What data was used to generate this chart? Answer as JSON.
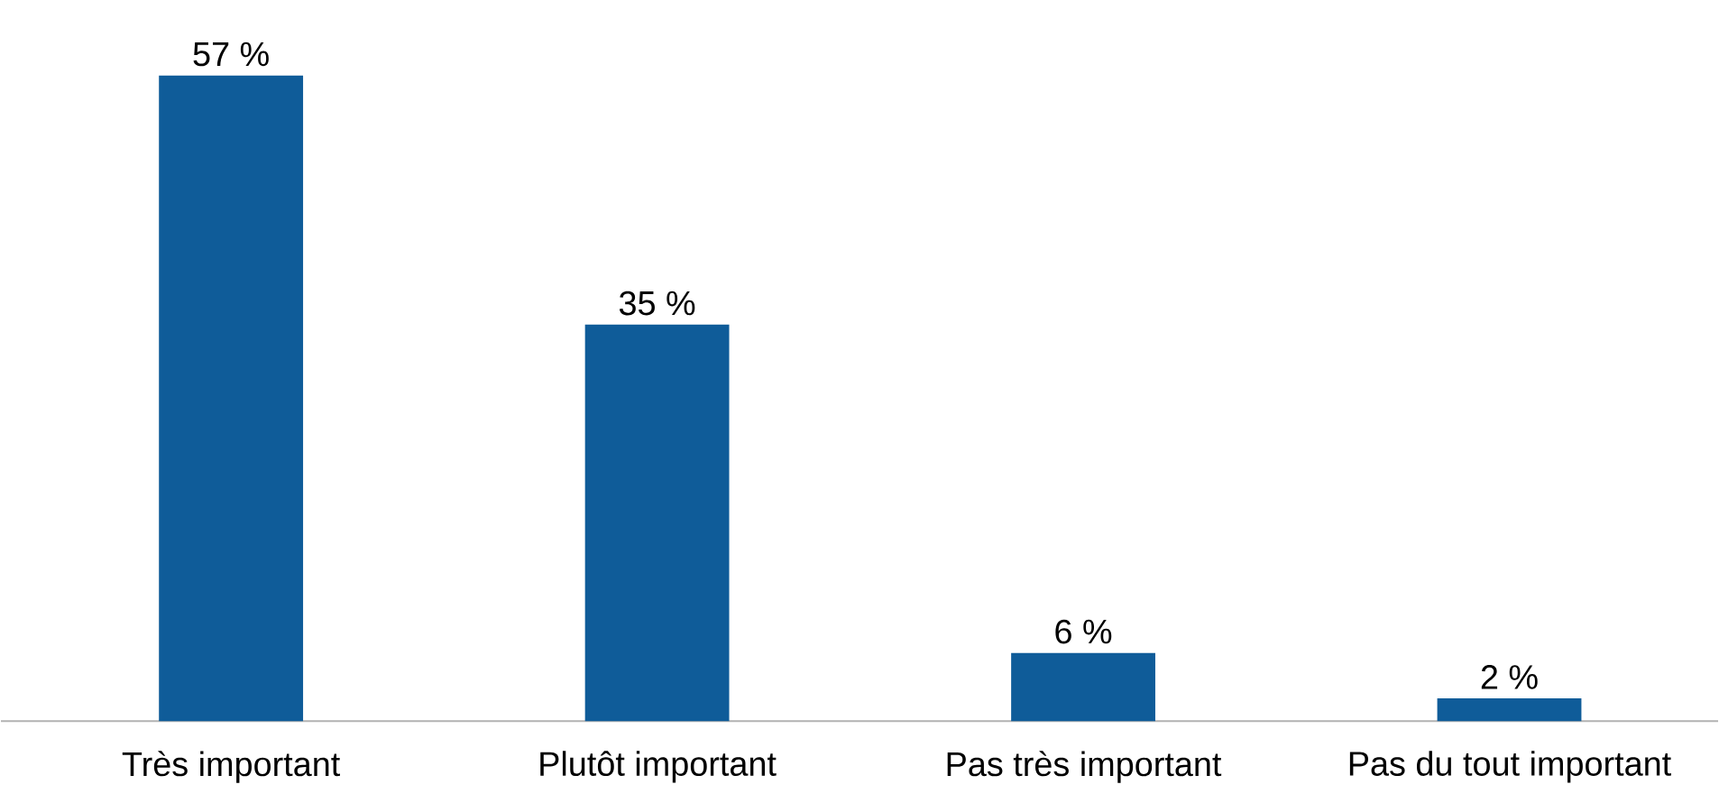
{
  "chart_data": {
    "type": "bar",
    "categories": [
      "Très important",
      "Plutôt important",
      "Pas très important",
      "Pas du tout important"
    ],
    "values": [
      57,
      35,
      6,
      2
    ],
    "value_labels": [
      "57 %",
      "35 %",
      "6 %",
      "2 %"
    ],
    "color": "#0f5c99"
  }
}
